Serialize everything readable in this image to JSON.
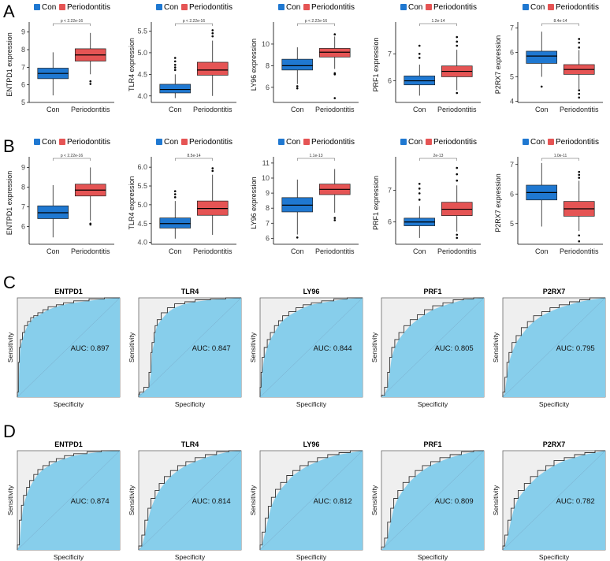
{
  "panels": {
    "A": {
      "letter": "A"
    },
    "B": {
      "letter": "B"
    },
    "C": {
      "letter": "C"
    },
    "D": {
      "letter": "D"
    }
  },
  "colors": {
    "con": "#1f78d1",
    "periodontitis": "#e55454",
    "roc_fill": "#87ceeb",
    "roc_bg": "#efefef",
    "roc_line": "#333333"
  },
  "legend": {
    "con": "Con",
    "periodontitis": "Periodontitis"
  },
  "chart_data": [
    {
      "type": "box",
      "panel": "A",
      "gene": "ENTPD1",
      "ylabel": "ENTPD1 expression",
      "categories": [
        "Con",
        "Periodontitis"
      ],
      "ylim": [
        5,
        9.3
      ],
      "yticks": [
        "5",
        "6",
        "7",
        "8",
        "9"
      ],
      "pvalue": "p < 2.22e-16",
      "series": [
        {
          "name": "Con",
          "min": 5.4,
          "q1": 6.35,
          "median": 6.65,
          "q3": 6.95,
          "max": 7.85,
          "outliers": []
        },
        {
          "name": "Periodontitis",
          "min": 6.6,
          "q1": 7.35,
          "median": 7.7,
          "q3": 8.05,
          "max": 8.95,
          "outliers": [
            6.05,
            6.2
          ]
        }
      ]
    },
    {
      "type": "box",
      "panel": "A",
      "gene": "TLR4",
      "ylabel": "TLR4 expression",
      "categories": [
        "Con",
        "Periodontitis"
      ],
      "ylim": [
        3.85,
        5.6
      ],
      "yticks": [
        "4.0",
        "4.5",
        "5.0",
        "5.5"
      ],
      "pvalue": "p < 2.22e-16",
      "series": [
        {
          "name": "Con",
          "min": 3.95,
          "q1": 4.07,
          "median": 4.15,
          "q3": 4.27,
          "max": 4.5,
          "outliers": [
            4.6,
            4.66,
            4.72,
            4.8,
            4.88
          ]
        },
        {
          "name": "Periodontitis",
          "min": 4.0,
          "q1": 4.48,
          "median": 4.6,
          "q3": 4.78,
          "max": 5.28,
          "outliers": [
            5.38,
            5.45,
            5.52
          ]
        }
      ]
    },
    {
      "type": "box",
      "panel": "A",
      "gene": "LY96",
      "ylabel": "LY96 expression",
      "categories": [
        "Con",
        "Periodontitis"
      ],
      "ylim": [
        4.6,
        11.6
      ],
      "yticks": [
        "6",
        "8",
        "10"
      ],
      "pvalue": "p < 2.22e-16",
      "series": [
        {
          "name": "Con",
          "min": 6.3,
          "q1": 7.6,
          "median": 8.0,
          "q3": 8.6,
          "max": 9.7,
          "outliers": [
            5.9,
            6.1
          ]
        },
        {
          "name": "Periodontitis",
          "min": 7.7,
          "q1": 8.8,
          "median": 9.25,
          "q3": 9.6,
          "max": 10.7,
          "outliers": [
            7.2,
            7.3,
            5.0,
            10.9
          ]
        }
      ]
    },
    {
      "type": "box",
      "panel": "A",
      "gene": "PRF1",
      "ylabel": "PRF1 expression",
      "categories": [
        "Con",
        "Periodontitis"
      ],
      "ylim": [
        5.2,
        8.0
      ],
      "yticks": [
        "6",
        "7"
      ],
      "pvalue": "1.2e-14",
      "series": [
        {
          "name": "Con",
          "min": 5.45,
          "q1": 5.85,
          "median": 6.0,
          "q3": 6.18,
          "max": 6.6,
          "outliers": [
            6.85,
            7.0,
            7.3
          ]
        },
        {
          "name": "Periodontitis",
          "min": 5.65,
          "q1": 6.15,
          "median": 6.35,
          "q3": 6.55,
          "max": 7.15,
          "outliers": [
            5.55,
            7.3,
            7.45,
            7.62
          ]
        }
      ]
    },
    {
      "type": "box",
      "panel": "A",
      "gene": "P2RX7",
      "ylabel": "P2RX7 expression",
      "categories": [
        "Con",
        "Periodontitis"
      ],
      "ylim": [
        3.95,
        7.05
      ],
      "yticks": [
        "4",
        "5",
        "6",
        "7"
      ],
      "pvalue": "8.4e-14",
      "series": [
        {
          "name": "Con",
          "min": 5.0,
          "q1": 5.55,
          "median": 5.85,
          "q3": 6.05,
          "max": 6.85,
          "outliers": [
            4.6
          ]
        },
        {
          "name": "Periodontitis",
          "min": 4.5,
          "q1": 5.1,
          "median": 5.3,
          "q3": 5.5,
          "max": 6.1,
          "outliers": [
            4.15,
            4.3,
            4.45,
            6.2,
            6.4,
            6.55
          ]
        }
      ]
    },
    {
      "type": "box",
      "panel": "B",
      "gene": "ENTPD1",
      "ylabel": "ENTPD1 expression",
      "categories": [
        "Con",
        "Periodontitis"
      ],
      "ylim": [
        5.1,
        9.3
      ],
      "yticks": [
        "6",
        "7",
        "8",
        "9"
      ],
      "pvalue": "p < 2.22e-16",
      "series": [
        {
          "name": "Con",
          "min": 5.45,
          "q1": 6.4,
          "median": 6.7,
          "q3": 7.05,
          "max": 8.1,
          "outliers": []
        },
        {
          "name": "Periodontitis",
          "min": 6.3,
          "q1": 7.55,
          "median": 7.85,
          "q3": 8.15,
          "max": 9.0,
          "outliers": [
            6.1,
            6.15
          ]
        }
      ]
    },
    {
      "type": "box",
      "panel": "B",
      "gene": "TLR4",
      "ylabel": "TLR4 expression",
      "categories": [
        "Con",
        "Periodontitis"
      ],
      "ylim": [
        3.95,
        6.15
      ],
      "yticks": [
        "4.0",
        "4.5",
        "5.0",
        "5.5",
        "6.0"
      ],
      "pvalue": "8.5e-14",
      "series": [
        {
          "name": "Con",
          "min": 4.1,
          "q1": 4.38,
          "median": 4.5,
          "q3": 4.65,
          "max": 5.1,
          "outliers": [
            5.2,
            5.28,
            5.36
          ]
        },
        {
          "name": "Periodontitis",
          "min": 4.2,
          "q1": 4.72,
          "median": 4.9,
          "q3": 5.1,
          "max": 5.8,
          "outliers": [
            5.9,
            5.97
          ]
        }
      ]
    },
    {
      "type": "box",
      "panel": "B",
      "gene": "LY96",
      "ylabel": "LY96 expression",
      "categories": [
        "Con",
        "Periodontitis"
      ],
      "ylim": [
        5.6,
        11.1
      ],
      "yticks": [
        "6",
        "7",
        "8",
        "9",
        "10",
        "11"
      ],
      "pvalue": "1.1e-13",
      "series": [
        {
          "name": "Con",
          "min": 6.25,
          "q1": 7.75,
          "median": 8.2,
          "q3": 8.7,
          "max": 9.9,
          "outliers": [
            6.05
          ]
        },
        {
          "name": "Periodontitis",
          "min": 7.7,
          "q1": 8.9,
          "median": 9.25,
          "q3": 9.6,
          "max": 10.6,
          "outliers": [
            7.2,
            7.35
          ]
        }
      ]
    },
    {
      "type": "box",
      "panel": "B",
      "gene": "PRF1",
      "ylabel": "PRF1 expression",
      "categories": [
        "Con",
        "Periodontitis"
      ],
      "ylim": [
        5.3,
        7.9
      ],
      "yticks": [
        "6",
        "7"
      ],
      "pvalue": "2e-13",
      "series": [
        {
          "name": "Con",
          "min": 5.5,
          "q1": 5.88,
          "median": 6.0,
          "q3": 6.12,
          "max": 6.5,
          "outliers": [
            6.7,
            6.9,
            7.05,
            7.2
          ]
        },
        {
          "name": "Periodontitis",
          "min": 5.7,
          "q1": 6.2,
          "median": 6.4,
          "q3": 6.62,
          "max": 7.15,
          "outliers": [
            5.5,
            5.6,
            7.3,
            7.5,
            7.7
          ]
        }
      ]
    },
    {
      "type": "box",
      "panel": "B",
      "gene": "P2RX7",
      "ylabel": "P2RX7 expression",
      "categories": [
        "Con",
        "Periodontitis"
      ],
      "ylim": [
        4.3,
        7.1
      ],
      "yticks": [
        "5",
        "6",
        "7"
      ],
      "pvalue": "1.0e-11",
      "series": [
        {
          "name": "Con",
          "min": 4.9,
          "q1": 5.8,
          "median": 6.05,
          "q3": 6.3,
          "max": 7.05,
          "outliers": []
        },
        {
          "name": "Periodontitis",
          "min": 4.75,
          "q1": 5.25,
          "median": 5.5,
          "q3": 5.75,
          "max": 6.45,
          "outliers": [
            4.4,
            4.6,
            6.55,
            6.65,
            6.75
          ]
        }
      ]
    },
    {
      "type": "roc",
      "panel": "C",
      "gene": "ENTPD1",
      "auc": 0.897,
      "auc_label": "AUC: 0.897",
      "xlabel": "Specificity",
      "ylabel": "Sensitivity",
      "curve": [
        [
          0,
          0
        ],
        [
          0.01,
          0.05
        ],
        [
          0.02,
          0.35
        ],
        [
          0.03,
          0.5
        ],
        [
          0.05,
          0.58
        ],
        [
          0.07,
          0.65
        ],
        [
          0.1,
          0.72
        ],
        [
          0.13,
          0.76
        ],
        [
          0.16,
          0.8
        ],
        [
          0.2,
          0.82
        ],
        [
          0.25,
          0.85
        ],
        [
          0.3,
          0.88
        ],
        [
          0.38,
          0.91
        ],
        [
          0.45,
          0.93
        ],
        [
          0.55,
          0.95
        ],
        [
          0.7,
          0.97
        ],
        [
          0.85,
          0.99
        ],
        [
          1,
          1
        ]
      ]
    },
    {
      "type": "roc",
      "panel": "C",
      "gene": "TLR4",
      "auc": 0.847,
      "auc_label": "AUC: 0.847",
      "xlabel": "Specificity",
      "ylabel": "Sensitivity",
      "curve": [
        [
          0,
          0
        ],
        [
          0.01,
          0.03
        ],
        [
          0.05,
          0.05
        ],
        [
          0.1,
          0.1
        ],
        [
          0.12,
          0.25
        ],
        [
          0.13,
          0.45
        ],
        [
          0.15,
          0.55
        ],
        [
          0.16,
          0.65
        ],
        [
          0.18,
          0.72
        ],
        [
          0.22,
          0.78
        ],
        [
          0.28,
          0.85
        ],
        [
          0.35,
          0.9
        ],
        [
          0.45,
          0.94
        ],
        [
          0.55,
          0.96
        ],
        [
          0.7,
          0.98
        ],
        [
          0.85,
          0.99
        ],
        [
          1,
          1
        ]
      ]
    },
    {
      "type": "roc",
      "panel": "C",
      "gene": "LY96",
      "auc": 0.844,
      "auc_label": "AUC: 0.844",
      "xlabel": "Specificity",
      "ylabel": "Sensitivity",
      "curve": [
        [
          0,
          0
        ],
        [
          0.01,
          0.1
        ],
        [
          0.02,
          0.25
        ],
        [
          0.04,
          0.4
        ],
        [
          0.07,
          0.5
        ],
        [
          0.1,
          0.58
        ],
        [
          0.14,
          0.65
        ],
        [
          0.18,
          0.72
        ],
        [
          0.22,
          0.77
        ],
        [
          0.28,
          0.82
        ],
        [
          0.35,
          0.86
        ],
        [
          0.42,
          0.9
        ],
        [
          0.5,
          0.93
        ],
        [
          0.6,
          0.95
        ],
        [
          0.72,
          0.97
        ],
        [
          0.85,
          0.99
        ],
        [
          1,
          1
        ]
      ]
    },
    {
      "type": "roc",
      "panel": "C",
      "gene": "PRF1",
      "auc": 0.805,
      "auc_label": "AUC: 0.805",
      "xlabel": "Specificity",
      "ylabel": "Sensitivity",
      "curve": [
        [
          0,
          0
        ],
        [
          0.03,
          0.02
        ],
        [
          0.06,
          0.1
        ],
        [
          0.08,
          0.25
        ],
        [
          0.1,
          0.4
        ],
        [
          0.13,
          0.5
        ],
        [
          0.17,
          0.58
        ],
        [
          0.22,
          0.65
        ],
        [
          0.28,
          0.72
        ],
        [
          0.35,
          0.78
        ],
        [
          0.42,
          0.83
        ],
        [
          0.5,
          0.88
        ],
        [
          0.6,
          0.92
        ],
        [
          0.7,
          0.95
        ],
        [
          0.8,
          0.98
        ],
        [
          0.9,
          0.99
        ],
        [
          1,
          1
        ]
      ]
    },
    {
      "type": "roc",
      "panel": "C",
      "gene": "P2RX7",
      "auc": 0.795,
      "auc_label": "AUC: 0.795",
      "xlabel": "Specificity",
      "ylabel": "Sensitivity",
      "curve": [
        [
          0,
          0
        ],
        [
          0.02,
          0.05
        ],
        [
          0.04,
          0.2
        ],
        [
          0.06,
          0.35
        ],
        [
          0.09,
          0.45
        ],
        [
          0.13,
          0.55
        ],
        [
          0.18,
          0.62
        ],
        [
          0.24,
          0.7
        ],
        [
          0.3,
          0.76
        ],
        [
          0.38,
          0.82
        ],
        [
          0.46,
          0.86
        ],
        [
          0.55,
          0.9
        ],
        [
          0.65,
          0.93
        ],
        [
          0.75,
          0.96
        ],
        [
          0.85,
          0.98
        ],
        [
          1,
          1
        ]
      ]
    },
    {
      "type": "roc",
      "panel": "D",
      "gene": "ENTPD1",
      "auc": 0.874,
      "auc_label": "AUC: 0.874",
      "xlabel": "Specificity",
      "ylabel": "Sensitivity",
      "curve": [
        [
          0,
          0
        ],
        [
          0.02,
          0.05
        ],
        [
          0.04,
          0.3
        ],
        [
          0.06,
          0.45
        ],
        [
          0.09,
          0.55
        ],
        [
          0.12,
          0.63
        ],
        [
          0.16,
          0.7
        ],
        [
          0.2,
          0.76
        ],
        [
          0.25,
          0.81
        ],
        [
          0.31,
          0.85
        ],
        [
          0.38,
          0.89
        ],
        [
          0.46,
          0.92
        ],
        [
          0.55,
          0.95
        ],
        [
          0.68,
          0.97
        ],
        [
          0.82,
          0.99
        ],
        [
          1,
          1
        ]
      ]
    },
    {
      "type": "roc",
      "panel": "D",
      "gene": "TLR4",
      "auc": 0.814,
      "auc_label": "AUC: 0.814",
      "xlabel": "Specificity",
      "ylabel": "Sensitivity",
      "curve": [
        [
          0,
          0
        ],
        [
          0.03,
          0.04
        ],
        [
          0.06,
          0.15
        ],
        [
          0.09,
          0.3
        ],
        [
          0.12,
          0.42
        ],
        [
          0.16,
          0.52
        ],
        [
          0.2,
          0.6
        ],
        [
          0.25,
          0.67
        ],
        [
          0.31,
          0.74
        ],
        [
          0.38,
          0.8
        ],
        [
          0.46,
          0.85
        ],
        [
          0.55,
          0.89
        ],
        [
          0.65,
          0.93
        ],
        [
          0.76,
          0.96
        ],
        [
          0.88,
          0.99
        ],
        [
          1,
          1
        ]
      ]
    },
    {
      "type": "roc",
      "panel": "D",
      "gene": "LY96",
      "auc": 0.812,
      "auc_label": "AUC: 0.812",
      "xlabel": "Specificity",
      "ylabel": "Sensitivity",
      "curve": [
        [
          0,
          0
        ],
        [
          0.02,
          0.05
        ],
        [
          0.05,
          0.18
        ],
        [
          0.08,
          0.32
        ],
        [
          0.11,
          0.44
        ],
        [
          0.15,
          0.53
        ],
        [
          0.2,
          0.61
        ],
        [
          0.26,
          0.68
        ],
        [
          0.32,
          0.75
        ],
        [
          0.39,
          0.8
        ],
        [
          0.47,
          0.85
        ],
        [
          0.56,
          0.89
        ],
        [
          0.66,
          0.93
        ],
        [
          0.77,
          0.96
        ],
        [
          0.88,
          0.98
        ],
        [
          1,
          1
        ]
      ]
    },
    {
      "type": "roc",
      "panel": "D",
      "gene": "PRF1",
      "auc": 0.809,
      "auc_label": "AUC: 0.809",
      "xlabel": "Specificity",
      "ylabel": "Sensitivity",
      "curve": [
        [
          0,
          0
        ],
        [
          0.03,
          0.03
        ],
        [
          0.06,
          0.12
        ],
        [
          0.09,
          0.28
        ],
        [
          0.12,
          0.42
        ],
        [
          0.16,
          0.52
        ],
        [
          0.21,
          0.6
        ],
        [
          0.27,
          0.68
        ],
        [
          0.33,
          0.74
        ],
        [
          0.4,
          0.8
        ],
        [
          0.48,
          0.85
        ],
        [
          0.57,
          0.89
        ],
        [
          0.67,
          0.93
        ],
        [
          0.78,
          0.96
        ],
        [
          0.9,
          0.99
        ],
        [
          1,
          1
        ]
      ]
    },
    {
      "type": "roc",
      "panel": "D",
      "gene": "P2RX7",
      "auc": 0.782,
      "auc_label": "AUC: 0.782",
      "xlabel": "Specificity",
      "ylabel": "Sensitivity",
      "curve": [
        [
          0,
          0
        ],
        [
          0.02,
          0.04
        ],
        [
          0.05,
          0.15
        ],
        [
          0.08,
          0.3
        ],
        [
          0.11,
          0.42
        ],
        [
          0.15,
          0.52
        ],
        [
          0.21,
          0.6
        ],
        [
          0.27,
          0.67
        ],
        [
          0.34,
          0.74
        ],
        [
          0.42,
          0.8
        ],
        [
          0.5,
          0.85
        ],
        [
          0.6,
          0.9
        ],
        [
          0.7,
          0.93
        ],
        [
          0.8,
          0.96
        ],
        [
          0.9,
          0.98
        ],
        [
          1,
          1
        ]
      ]
    }
  ]
}
